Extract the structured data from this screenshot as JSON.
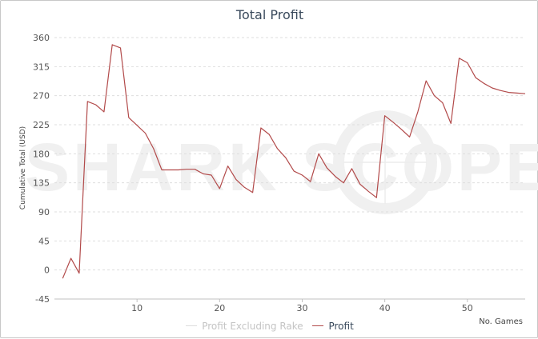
{
  "chart_data": {
    "type": "line",
    "title": "Total Profit",
    "xlabel": "No. Games",
    "ylabel": "Cumulative Total (USD)",
    "xlim": [
      0,
      57
    ],
    "ylim": [
      -45,
      360
    ],
    "yticks": [
      -45,
      0,
      45,
      90,
      135,
      180,
      225,
      270,
      315,
      360
    ],
    "xticks": [
      10,
      20,
      30,
      40,
      50
    ],
    "grid": true,
    "legend_position": "bottom",
    "series": [
      {
        "name": "Profit Excluding Rake",
        "visible": false,
        "color": "#dcdcdc",
        "x": [],
        "values": []
      },
      {
        "name": "Profit",
        "visible": true,
        "color": "#b24a4a",
        "x": [
          1,
          2,
          3,
          4,
          5,
          6,
          7,
          8,
          9,
          10,
          11,
          12,
          13,
          14,
          15,
          16,
          17,
          18,
          19,
          20,
          21,
          22,
          23,
          24,
          25,
          26,
          27,
          28,
          29,
          30,
          31,
          32,
          33,
          34,
          35,
          36,
          37,
          38,
          39,
          40,
          41,
          42,
          43,
          44,
          45,
          46,
          47,
          48,
          49,
          50,
          51,
          52,
          53,
          54,
          55,
          56,
          57
        ],
        "values": [
          -13,
          18,
          -5,
          261,
          256,
          245,
          349,
          344,
          236,
          224,
          212,
          188,
          155,
          155,
          155,
          156,
          156,
          149,
          147,
          126,
          161,
          140,
          128,
          120,
          220,
          210,
          188,
          174,
          153,
          147,
          137,
          180,
          158,
          145,
          135,
          157,
          133,
          122,
          112,
          239,
          229,
          218,
          206,
          245,
          293,
          270,
          259,
          227,
          328,
          321,
          298,
          289,
          282,
          278,
          275,
          274,
          273
        ]
      }
    ],
    "watermark": "SHARK SCOPE"
  }
}
